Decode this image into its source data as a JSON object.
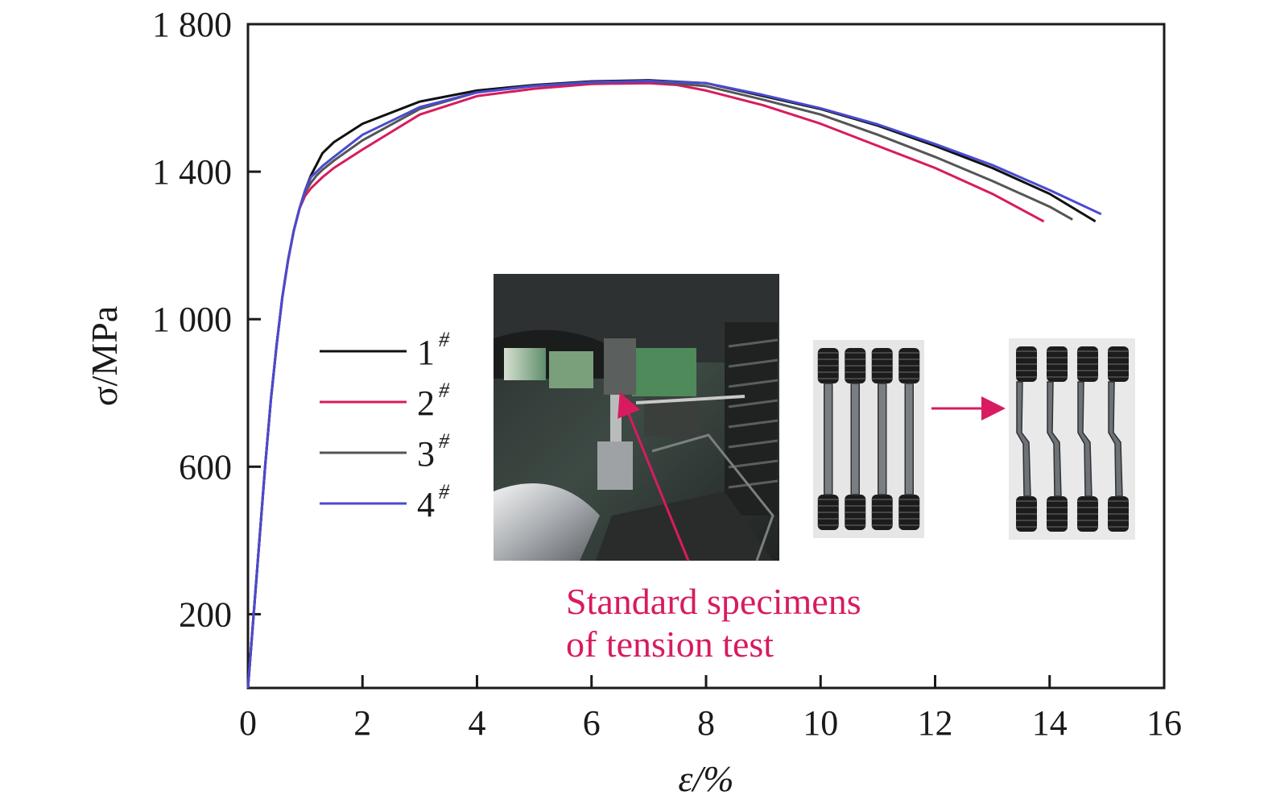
{
  "chart_data": {
    "type": "line",
    "title": "",
    "xlabel": "ε/%",
    "ylabel": "σ/MPa",
    "xlim": [
      0,
      16
    ],
    "ylim": [
      0,
      1800
    ],
    "x_ticks": [
      0,
      2,
      4,
      6,
      8,
      10,
      12,
      14,
      16
    ],
    "x_tick_labels": [
      "0",
      "2",
      "4",
      "6",
      "8",
      "10",
      "12",
      "14",
      "16"
    ],
    "y_ticks": [
      200,
      600,
      1000,
      1400,
      1800
    ],
    "y_tick_labels": [
      "200",
      "600",
      "1 000",
      "1 400",
      "1 800"
    ],
    "grid": false,
    "legend_position": "center-left",
    "series": [
      {
        "name": "1",
        "color": "#111111",
        "x": [
          0,
          0.1,
          0.2,
          0.3,
          0.4,
          0.5,
          0.6,
          0.7,
          0.8,
          0.9,
          1.0,
          1.1,
          1.2,
          1.3,
          1.5,
          2,
          3,
          4,
          5,
          6,
          7,
          8,
          9,
          10,
          11,
          12,
          13,
          14,
          14.8
        ],
        "y": [
          0,
          200,
          400,
          600,
          780,
          930,
          1060,
          1160,
          1240,
          1300,
          1350,
          1390,
          1420,
          1450,
          1480,
          1530,
          1590,
          1620,
          1635,
          1645,
          1648,
          1640,
          1605,
          1570,
          1525,
          1470,
          1410,
          1340,
          1265
        ]
      },
      {
        "name": "2",
        "color": "#d81b60",
        "x": [
          0,
          0.1,
          0.2,
          0.3,
          0.4,
          0.5,
          0.6,
          0.7,
          0.8,
          0.9,
          1.0,
          1.1,
          1.2,
          1.3,
          1.5,
          2,
          3,
          4,
          5,
          6,
          7,
          7.5,
          8,
          9,
          10,
          11,
          12,
          13,
          13.9
        ],
        "y": [
          0,
          200,
          400,
          600,
          780,
          930,
          1060,
          1160,
          1240,
          1300,
          1335,
          1355,
          1370,
          1385,
          1410,
          1460,
          1555,
          1605,
          1625,
          1638,
          1640,
          1635,
          1620,
          1580,
          1530,
          1470,
          1410,
          1340,
          1265
        ]
      },
      {
        "name": "3",
        "color": "#555555",
        "x": [
          0,
          0.1,
          0.2,
          0.3,
          0.4,
          0.5,
          0.6,
          0.7,
          0.8,
          0.9,
          1.0,
          1.1,
          1.2,
          1.3,
          1.5,
          2,
          3,
          4,
          5,
          6,
          7,
          8,
          9,
          10,
          11,
          12,
          13,
          14,
          14.4
        ],
        "y": [
          0,
          200,
          400,
          600,
          780,
          930,
          1060,
          1160,
          1240,
          1300,
          1345,
          1370,
          1390,
          1405,
          1430,
          1485,
          1570,
          1615,
          1632,
          1642,
          1645,
          1632,
          1595,
          1555,
          1500,
          1440,
          1375,
          1305,
          1270
        ]
      },
      {
        "name": "4",
        "color": "#4a4ad0",
        "x": [
          0,
          0.1,
          0.2,
          0.3,
          0.4,
          0.5,
          0.6,
          0.7,
          0.8,
          0.9,
          1.0,
          1.1,
          1.2,
          1.3,
          1.5,
          2,
          3,
          4,
          5,
          6,
          7,
          8,
          9,
          10,
          11,
          12,
          13,
          14,
          14.9
        ],
        "y": [
          0,
          200,
          400,
          600,
          780,
          930,
          1060,
          1160,
          1240,
          1300,
          1350,
          1385,
          1400,
          1415,
          1440,
          1500,
          1575,
          1615,
          1633,
          1643,
          1646,
          1640,
          1608,
          1572,
          1528,
          1475,
          1418,
          1350,
          1285
        ]
      }
    ],
    "legend": {
      "entries": [
        "1",
        "2",
        "3",
        "4"
      ],
      "superscript": "#"
    },
    "annotation": {
      "line1": "Standard specimens",
      "line2": "of tension test",
      "color": "#d81b60"
    },
    "inset_photos": [
      "tension-test-machine-photo",
      "specimens-before-test-photo",
      "specimens-after-test-photo"
    ]
  }
}
